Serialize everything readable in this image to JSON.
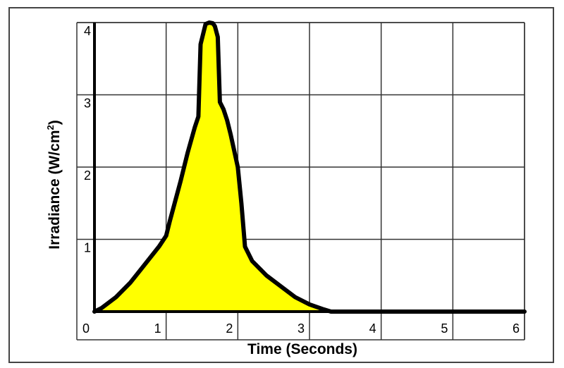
{
  "chart_data": {
    "type": "area",
    "xlabel": "Time (Seconds)",
    "ylabel_main": "Irradiance (W/cm",
    "ylabel_sup": "2",
    "ylabel_close": ")",
    "xlim": [
      0,
      6
    ],
    "ylim": [
      0,
      4
    ],
    "xticks": [
      "0",
      "1",
      "2",
      "3",
      "4",
      "5",
      "6"
    ],
    "yticks": [
      "1",
      "2",
      "3",
      "4"
    ],
    "grid": true,
    "series": [
      {
        "x": [
          0.0,
          0.1,
          0.3,
          0.5,
          0.7,
          0.9,
          1.0,
          1.05,
          1.2,
          1.3,
          1.4,
          1.45,
          1.48,
          1.55,
          1.6,
          1.65,
          1.68,
          1.72,
          1.75,
          1.8,
          1.85,
          1.9,
          2.0,
          2.05,
          2.1,
          2.2,
          2.4,
          2.6,
          2.8,
          3.0,
          3.2,
          3.3,
          6.0
        ],
        "y": [
          0.0,
          0.05,
          0.2,
          0.4,
          0.65,
          0.9,
          1.05,
          1.25,
          1.8,
          2.2,
          2.55,
          2.7,
          3.7,
          3.98,
          4.0,
          3.99,
          3.95,
          3.8,
          2.9,
          2.8,
          2.65,
          2.45,
          2.0,
          1.5,
          0.9,
          0.7,
          0.5,
          0.35,
          0.2,
          0.1,
          0.03,
          0.0,
          0.0
        ],
        "fill": "#ffff00",
        "stroke": "#000000"
      }
    ]
  }
}
